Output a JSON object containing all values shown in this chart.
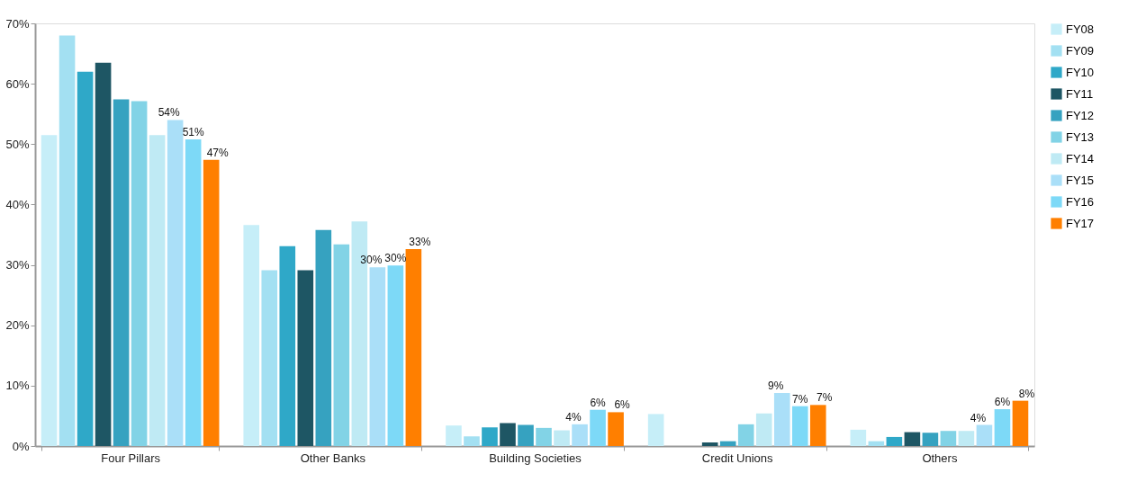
{
  "chart_data": {
    "type": "bar",
    "categories": [
      "Four Pillars",
      "Other Banks",
      "Building Societies",
      "Credit Unions",
      "Others"
    ],
    "series": [
      {
        "name": "FY08",
        "color": "#c6eef8",
        "values": [
          51.5,
          36.6,
          3.4,
          5.3,
          2.7
        ]
      },
      {
        "name": "FY09",
        "color": "#a3e0f2",
        "values": [
          68,
          29.1,
          1.6,
          null,
          0.8
        ]
      },
      {
        "name": "FY10",
        "color": "#2fa8c8",
        "values": [
          62,
          33.1,
          3.1,
          null,
          1.5
        ]
      },
      {
        "name": "FY11",
        "color": "#1e5664",
        "values": [
          63.5,
          29.1,
          3.8,
          0.6,
          2.3
        ]
      },
      {
        "name": "FY12",
        "color": "#36a2c0",
        "values": [
          57.4,
          35.8,
          3.5,
          0.8,
          2.2
        ]
      },
      {
        "name": "FY13",
        "color": "#82d3e6",
        "values": [
          57.1,
          33.4,
          3.0,
          3.6,
          2.5
        ]
      },
      {
        "name": "FY14",
        "color": "#bfeaf4",
        "values": [
          51.5,
          37.2,
          2.6,
          5.4,
          2.5
        ]
      },
      {
        "name": "FY15",
        "color": "#aadff8",
        "values": [
          54,
          29.6,
          3.6,
          8.8,
          3.5
        ],
        "value_labels": [
          "54%",
          "30%",
          "4%",
          "9%",
          "4%"
        ]
      },
      {
        "name": "FY16",
        "color": "#7dd9f7",
        "values": [
          50.8,
          29.9,
          6.0,
          6.6,
          6.1
        ],
        "value_labels": [
          "51%",
          "30%",
          "6%",
          "7%",
          "6%"
        ]
      },
      {
        "name": "FY17",
        "color": "#ff7f00",
        "values": [
          47.4,
          32.6,
          5.6,
          6.8,
          7.5
        ],
        "value_labels": [
          "47%",
          "33%",
          "6%",
          "7%",
          "8%"
        ]
      }
    ],
    "ylim": [
      0,
      70
    ],
    "yticks": [
      {
        "value": 0,
        "label": "0%"
      },
      {
        "value": 10,
        "label": "10%"
      },
      {
        "value": 20,
        "label": "20%"
      },
      {
        "value": 30,
        "label": "30%"
      },
      {
        "value": 40,
        "label": "40%"
      },
      {
        "value": 50,
        "label": "50%"
      },
      {
        "value": 60,
        "label": "60%"
      },
      {
        "value": 70,
        "label": "70%"
      }
    ],
    "legend": "top right",
    "grid": false
  }
}
